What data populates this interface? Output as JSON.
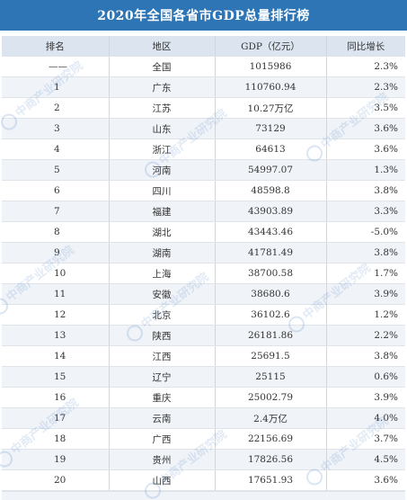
{
  "title": "2020年全国各省市GDP总量排行榜",
  "columns": [
    "排名",
    "地区",
    "GDP（亿元）",
    "同比增长"
  ],
  "rows": [
    {
      "rank": "——",
      "region": "全国",
      "gdp": "1015986",
      "growth": "2.3%"
    },
    {
      "rank": "1",
      "region": "广东",
      "gdp": "110760.94",
      "growth": "2.3%"
    },
    {
      "rank": "2",
      "region": "江苏",
      "gdp": "10.27万亿",
      "growth": "3.5%"
    },
    {
      "rank": "3",
      "region": "山东",
      "gdp": "73129",
      "growth": "3.6%"
    },
    {
      "rank": "4",
      "region": "浙江",
      "gdp": "64613",
      "growth": "3.6%"
    },
    {
      "rank": "5",
      "region": "河南",
      "gdp": "54997.07",
      "growth": "1.3%"
    },
    {
      "rank": "6",
      "region": "四川",
      "gdp": "48598.8",
      "growth": "3.8%"
    },
    {
      "rank": "7",
      "region": "福建",
      "gdp": "43903.89",
      "growth": "3.3%"
    },
    {
      "rank": "8",
      "region": "湖北",
      "gdp": "43443.46",
      "growth": "-5.0%"
    },
    {
      "rank": "9",
      "region": "湖南",
      "gdp": "41781.49",
      "growth": "3.8%"
    },
    {
      "rank": "10",
      "region": "上海",
      "gdp": "38700.58",
      "growth": "1.7%"
    },
    {
      "rank": "11",
      "region": "安徽",
      "gdp": "38680.6",
      "growth": "3.9%"
    },
    {
      "rank": "12",
      "region": "北京",
      "gdp": "36102.6",
      "growth": "1.2%"
    },
    {
      "rank": "13",
      "region": "陕西",
      "gdp": "26181.86",
      "growth": "2.2%"
    },
    {
      "rank": "14",
      "region": "江西",
      "gdp": "25691.5",
      "growth": "3.8%"
    },
    {
      "rank": "15",
      "region": "辽宁",
      "gdp": "25115",
      "growth": "0.6%"
    },
    {
      "rank": "16",
      "region": "重庆",
      "gdp": "25002.79",
      "growth": "3.9%"
    },
    {
      "rank": "17",
      "region": "云南",
      "gdp": "2.4万亿",
      "growth": "4.0%"
    },
    {
      "rank": "18",
      "region": "广西",
      "gdp": "22156.69",
      "growth": "3.7%"
    },
    {
      "rank": "19",
      "region": "贵州",
      "gdp": "17826.56",
      "growth": "4.5%"
    },
    {
      "rank": "20",
      "region": "山西",
      "gdp": "17651.93",
      "growth": "3.6%"
    }
  ],
  "watermark": "中商产业研究院",
  "colors": {
    "title_bg": "#2e75b6",
    "header_bg": "#dbe4ef",
    "stripe_bg": "#f0f3f8"
  }
}
